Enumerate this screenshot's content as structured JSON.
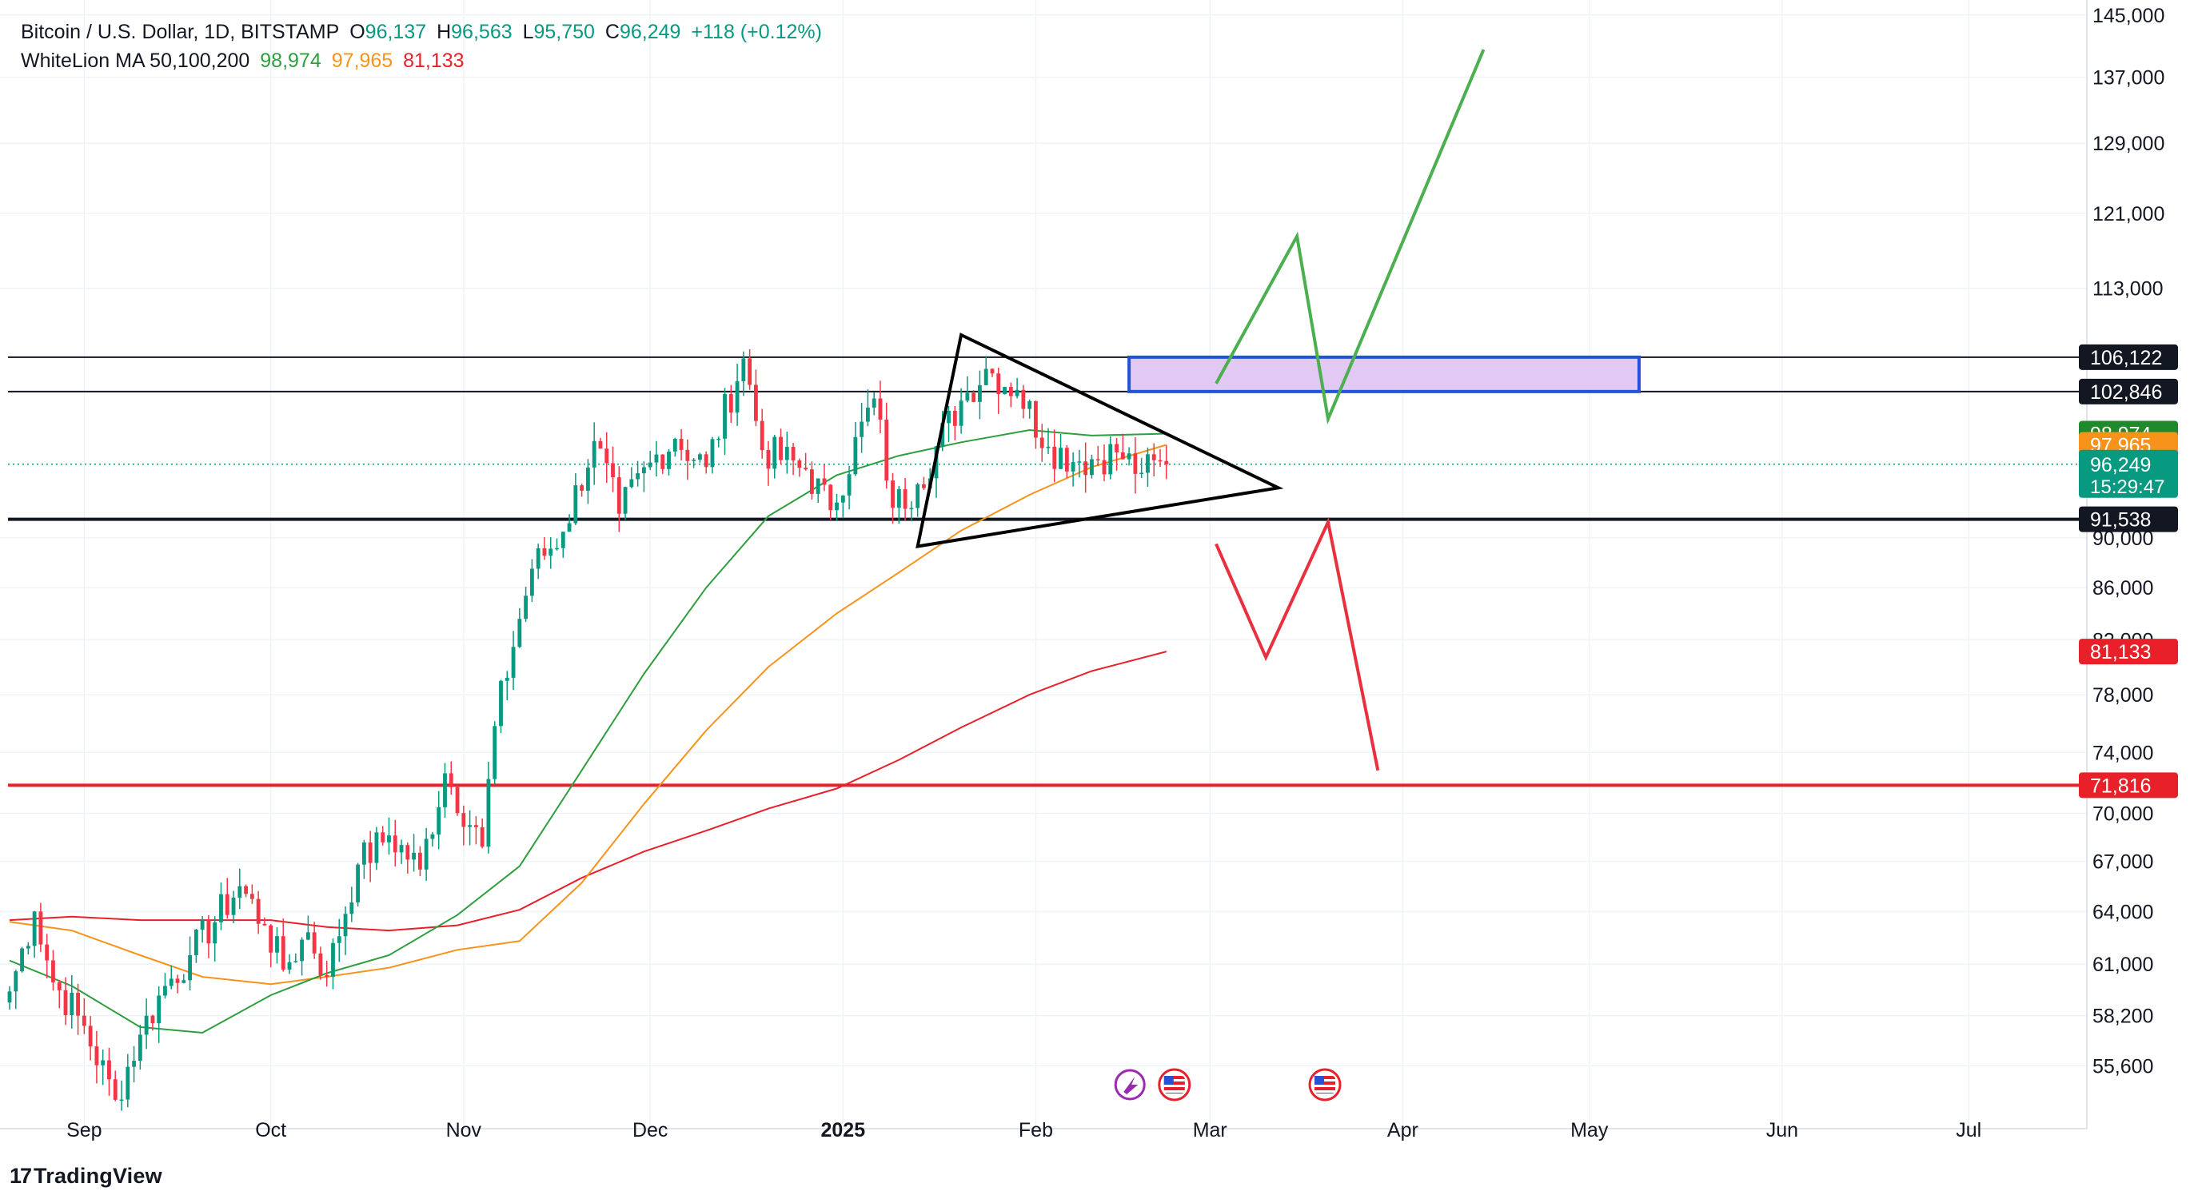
{
  "legend": {
    "symbol": "Bitcoin / U.S. Dollar, 1D, BITSTAMP",
    "o_label": "O",
    "o_value": "96,137",
    "h_label": "H",
    "h_value": "96,563",
    "l_label": "L",
    "l_value": "95,750",
    "c_label": "C",
    "c_value": "96,249",
    "change": "+118 (+0.12%)",
    "ma_name": "WhiteLion MA 50,100,200",
    "ma50": "98,974",
    "ma100": "97,965",
    "ma200": "81,133"
  },
  "branding": {
    "icon": "17",
    "text": "TradingView"
  },
  "colors": {
    "up": "#089981",
    "down": "#f23645",
    "ma50": "#2e9e3e",
    "ma100": "#f7931a",
    "ma200": "#e8202a",
    "support": "#e8202a",
    "zone_fill": "#e1c9f3",
    "zone_border": "#2452d6"
  },
  "chart_data": {
    "type": "candlestick",
    "symbol": "Bitcoin / U.S. Dollar",
    "interval": "1D",
    "exchange": "BITSTAMP",
    "x_range": [
      "2024-08-20",
      "2025-07-20"
    ],
    "y_scale": "log",
    "y_range": [
      52500,
      147000
    ],
    "x_ticks": [
      {
        "date": "2024-09-01",
        "label": "Sep",
        "bold": false
      },
      {
        "date": "2024-10-01",
        "label": "Oct",
        "bold": false
      },
      {
        "date": "2024-11-01",
        "label": "Nov",
        "bold": false
      },
      {
        "date": "2024-12-01",
        "label": "Dec",
        "bold": false
      },
      {
        "date": "2025-01-01",
        "label": "2025",
        "bold": true
      },
      {
        "date": "2025-02-01",
        "label": "Feb",
        "bold": false
      },
      {
        "date": "2025-03-01",
        "label": "Mar",
        "bold": false
      },
      {
        "date": "2025-04-01",
        "label": "Apr",
        "bold": false
      },
      {
        "date": "2025-05-01",
        "label": "May",
        "bold": false
      },
      {
        "date": "2025-06-01",
        "label": "Jun",
        "bold": false
      },
      {
        "date": "2025-07-01",
        "label": "Jul",
        "bold": false
      }
    ],
    "y_ticks": [
      {
        "value": 145000,
        "label": "145,000"
      },
      {
        "value": 137000,
        "label": "137,000"
      },
      {
        "value": 129000,
        "label": "129,000"
      },
      {
        "value": 121000,
        "label": "121,000"
      },
      {
        "value": 113000,
        "label": "113,000"
      },
      {
        "value": 90000,
        "label": "90,000"
      },
      {
        "value": 86000,
        "label": "86,000"
      },
      {
        "value": 82000,
        "label": "82,000"
      },
      {
        "value": 78000,
        "label": "78,000"
      },
      {
        "value": 74000,
        "label": "74,000"
      },
      {
        "value": 70000,
        "label": "70,000"
      },
      {
        "value": 67000,
        "label": "67,000"
      },
      {
        "value": 64000,
        "label": "64,000"
      },
      {
        "value": 61000,
        "label": "61,000"
      },
      {
        "value": 58200,
        "label": "58,200"
      },
      {
        "value": 55600,
        "label": "55,600"
      }
    ],
    "price_labels": [
      {
        "value": 106122,
        "label": "106,122",
        "bg": "#131722",
        "fg": "#ffffff"
      },
      {
        "value": 102846,
        "label": "102,846",
        "bg": "#131722",
        "fg": "#ffffff"
      },
      {
        "value": 98974,
        "label": "98,974",
        "bg": "#1f8a2c",
        "fg": "#ffffff"
      },
      {
        "value": 97965,
        "label": "97,965",
        "bg": "#f7931a",
        "fg": "#ffffff"
      },
      {
        "value": 96249,
        "label": "96,249",
        "bg": "#089981",
        "fg": "#ffffff",
        "sub": "15:29:47"
      },
      {
        "value": 91538,
        "label": "91,538",
        "bg": "#131722",
        "fg": "#ffffff"
      },
      {
        "value": 81133,
        "label": "81,133",
        "bg": "#e8202a",
        "fg": "#ffffff"
      },
      {
        "value": 71816,
        "label": "71,816",
        "bg": "#e8202a",
        "fg": "#ffffff"
      }
    ],
    "last_price": 96249,
    "horizontal_levels": [
      {
        "value": 106122,
        "color": "#131722",
        "weight": "thin"
      },
      {
        "value": 102846,
        "color": "#131722",
        "weight": "thin"
      },
      {
        "value": 91538,
        "color": "#131722",
        "weight": "thick"
      },
      {
        "value": 71816,
        "color": "#e8202a",
        "weight": "thick"
      }
    ],
    "zone": {
      "start": "2025-02-16",
      "end": "2025-05-09",
      "low": 102846,
      "high": 106122
    },
    "triangle": [
      {
        "date": "2025-01-20",
        "price": 108300
      },
      {
        "date": "2025-03-12",
        "price": 94200
      },
      {
        "date": "2025-01-13",
        "price": 89300
      }
    ],
    "bull_path": [
      {
        "date": "2025-03-02",
        "price": 103600
      },
      {
        "date": "2025-03-15",
        "price": 118500
      },
      {
        "date": "2025-03-20",
        "price": 100300
      },
      {
        "date": "2025-04-14",
        "price": 140500
      }
    ],
    "bear_path": [
      {
        "date": "2025-03-02",
        "price": 89500
      },
      {
        "date": "2025-03-10",
        "price": 80700
      },
      {
        "date": "2025-03-20",
        "price": 91300
      },
      {
        "date": "2025-03-28",
        "price": 72800
      }
    ],
    "ma50": [
      [
        "2024-08-20",
        61200
      ],
      [
        "2024-08-30",
        59800
      ],
      [
        "2024-09-10",
        57600
      ],
      [
        "2024-09-20",
        57300
      ],
      [
        "2024-10-01",
        59300
      ],
      [
        "2024-10-10",
        60500
      ],
      [
        "2024-10-20",
        61500
      ],
      [
        "2024-10-31",
        63800
      ],
      [
        "2024-11-10",
        66700
      ],
      [
        "2024-11-20",
        72800
      ],
      [
        "2024-11-30",
        79500
      ],
      [
        "2024-12-10",
        86000
      ],
      [
        "2024-12-20",
        91800
      ],
      [
        "2024-12-31",
        95300
      ],
      [
        "2025-01-10",
        97000
      ],
      [
        "2025-01-20",
        98200
      ],
      [
        "2025-01-31",
        99300
      ],
      [
        "2025-02-10",
        98800
      ],
      [
        "2025-02-22",
        98974
      ]
    ],
    "ma100": [
      [
        "2024-08-20",
        63400
      ],
      [
        "2024-08-30",
        62900
      ],
      [
        "2024-09-10",
        61500
      ],
      [
        "2024-09-20",
        60300
      ],
      [
        "2024-10-01",
        59900
      ],
      [
        "2024-10-10",
        60300
      ],
      [
        "2024-10-20",
        60800
      ],
      [
        "2024-10-31",
        61800
      ],
      [
        "2024-11-10",
        62300
      ],
      [
        "2024-11-20",
        65700
      ],
      [
        "2024-11-30",
        70600
      ],
      [
        "2024-12-10",
        75500
      ],
      [
        "2024-12-20",
        80000
      ],
      [
        "2024-12-31",
        84000
      ],
      [
        "2025-01-10",
        87200
      ],
      [
        "2025-01-20",
        90600
      ],
      [
        "2025-01-31",
        93600
      ],
      [
        "2025-02-10",
        96000
      ],
      [
        "2025-02-22",
        97965
      ]
    ],
    "ma200": [
      [
        "2024-08-20",
        63500
      ],
      [
        "2024-08-30",
        63700
      ],
      [
        "2024-09-10",
        63500
      ],
      [
        "2024-09-20",
        63500
      ],
      [
        "2024-10-01",
        63500
      ],
      [
        "2024-10-10",
        63100
      ],
      [
        "2024-10-20",
        62900
      ],
      [
        "2024-10-31",
        63200
      ],
      [
        "2024-11-10",
        64100
      ],
      [
        "2024-11-20",
        66000
      ],
      [
        "2024-11-30",
        67600
      ],
      [
        "2024-12-10",
        68900
      ],
      [
        "2024-12-20",
        70300
      ],
      [
        "2024-12-31",
        71600
      ],
      [
        "2025-01-10",
        73500
      ],
      [
        "2025-01-20",
        75700
      ],
      [
        "2025-01-31",
        78000
      ],
      [
        "2025-02-10",
        79700
      ],
      [
        "2025-02-22",
        81133
      ]
    ],
    "candle_anchors": [
      [
        "2024-08-20",
        59500
      ],
      [
        "2024-08-24",
        64000
      ],
      [
        "2024-08-27",
        60000
      ],
      [
        "2024-08-31",
        58200
      ],
      [
        "2024-09-06",
        53900
      ],
      [
        "2024-09-10",
        57200
      ],
      [
        "2024-09-14",
        59800
      ],
      [
        "2024-09-18",
        61500
      ],
      [
        "2024-09-26",
        65500
      ],
      [
        "2024-09-30",
        63200
      ],
      [
        "2024-10-03",
        60700
      ],
      [
        "2024-10-07",
        62800
      ],
      [
        "2024-10-10",
        60300
      ],
      [
        "2024-10-15",
        66800
      ],
      [
        "2024-10-20",
        68600
      ],
      [
        "2024-10-25",
        66500
      ],
      [
        "2024-10-29",
        72600
      ],
      [
        "2024-11-04",
        67900
      ],
      [
        "2024-11-06",
        75800
      ],
      [
        "2024-11-12",
        87500
      ],
      [
        "2024-11-17",
        90500
      ],
      [
        "2024-11-22",
        98300
      ],
      [
        "2024-11-26",
        92000
      ],
      [
        "2024-12-01",
        96400
      ],
      [
        "2024-12-05",
        98500
      ],
      [
        "2024-12-10",
        96000
      ],
      [
        "2024-12-16",
        106000
      ],
      [
        "2024-12-19",
        97500
      ],
      [
        "2024-12-26",
        95800
      ],
      [
        "2024-12-30",
        92300
      ],
      [
        "2025-01-06",
        102200
      ],
      [
        "2025-01-09",
        92500
      ],
      [
        "2025-01-13",
        94500
      ],
      [
        "2025-01-20",
        102000
      ],
      [
        "2025-01-24",
        105000
      ],
      [
        "2025-01-29",
        103000
      ],
      [
        "2025-02-03",
        97800
      ],
      [
        "2025-02-08",
        96500
      ],
      [
        "2025-02-14",
        97300
      ],
      [
        "2025-02-18",
        95500
      ],
      [
        "2025-02-22",
        96249
      ]
    ]
  }
}
